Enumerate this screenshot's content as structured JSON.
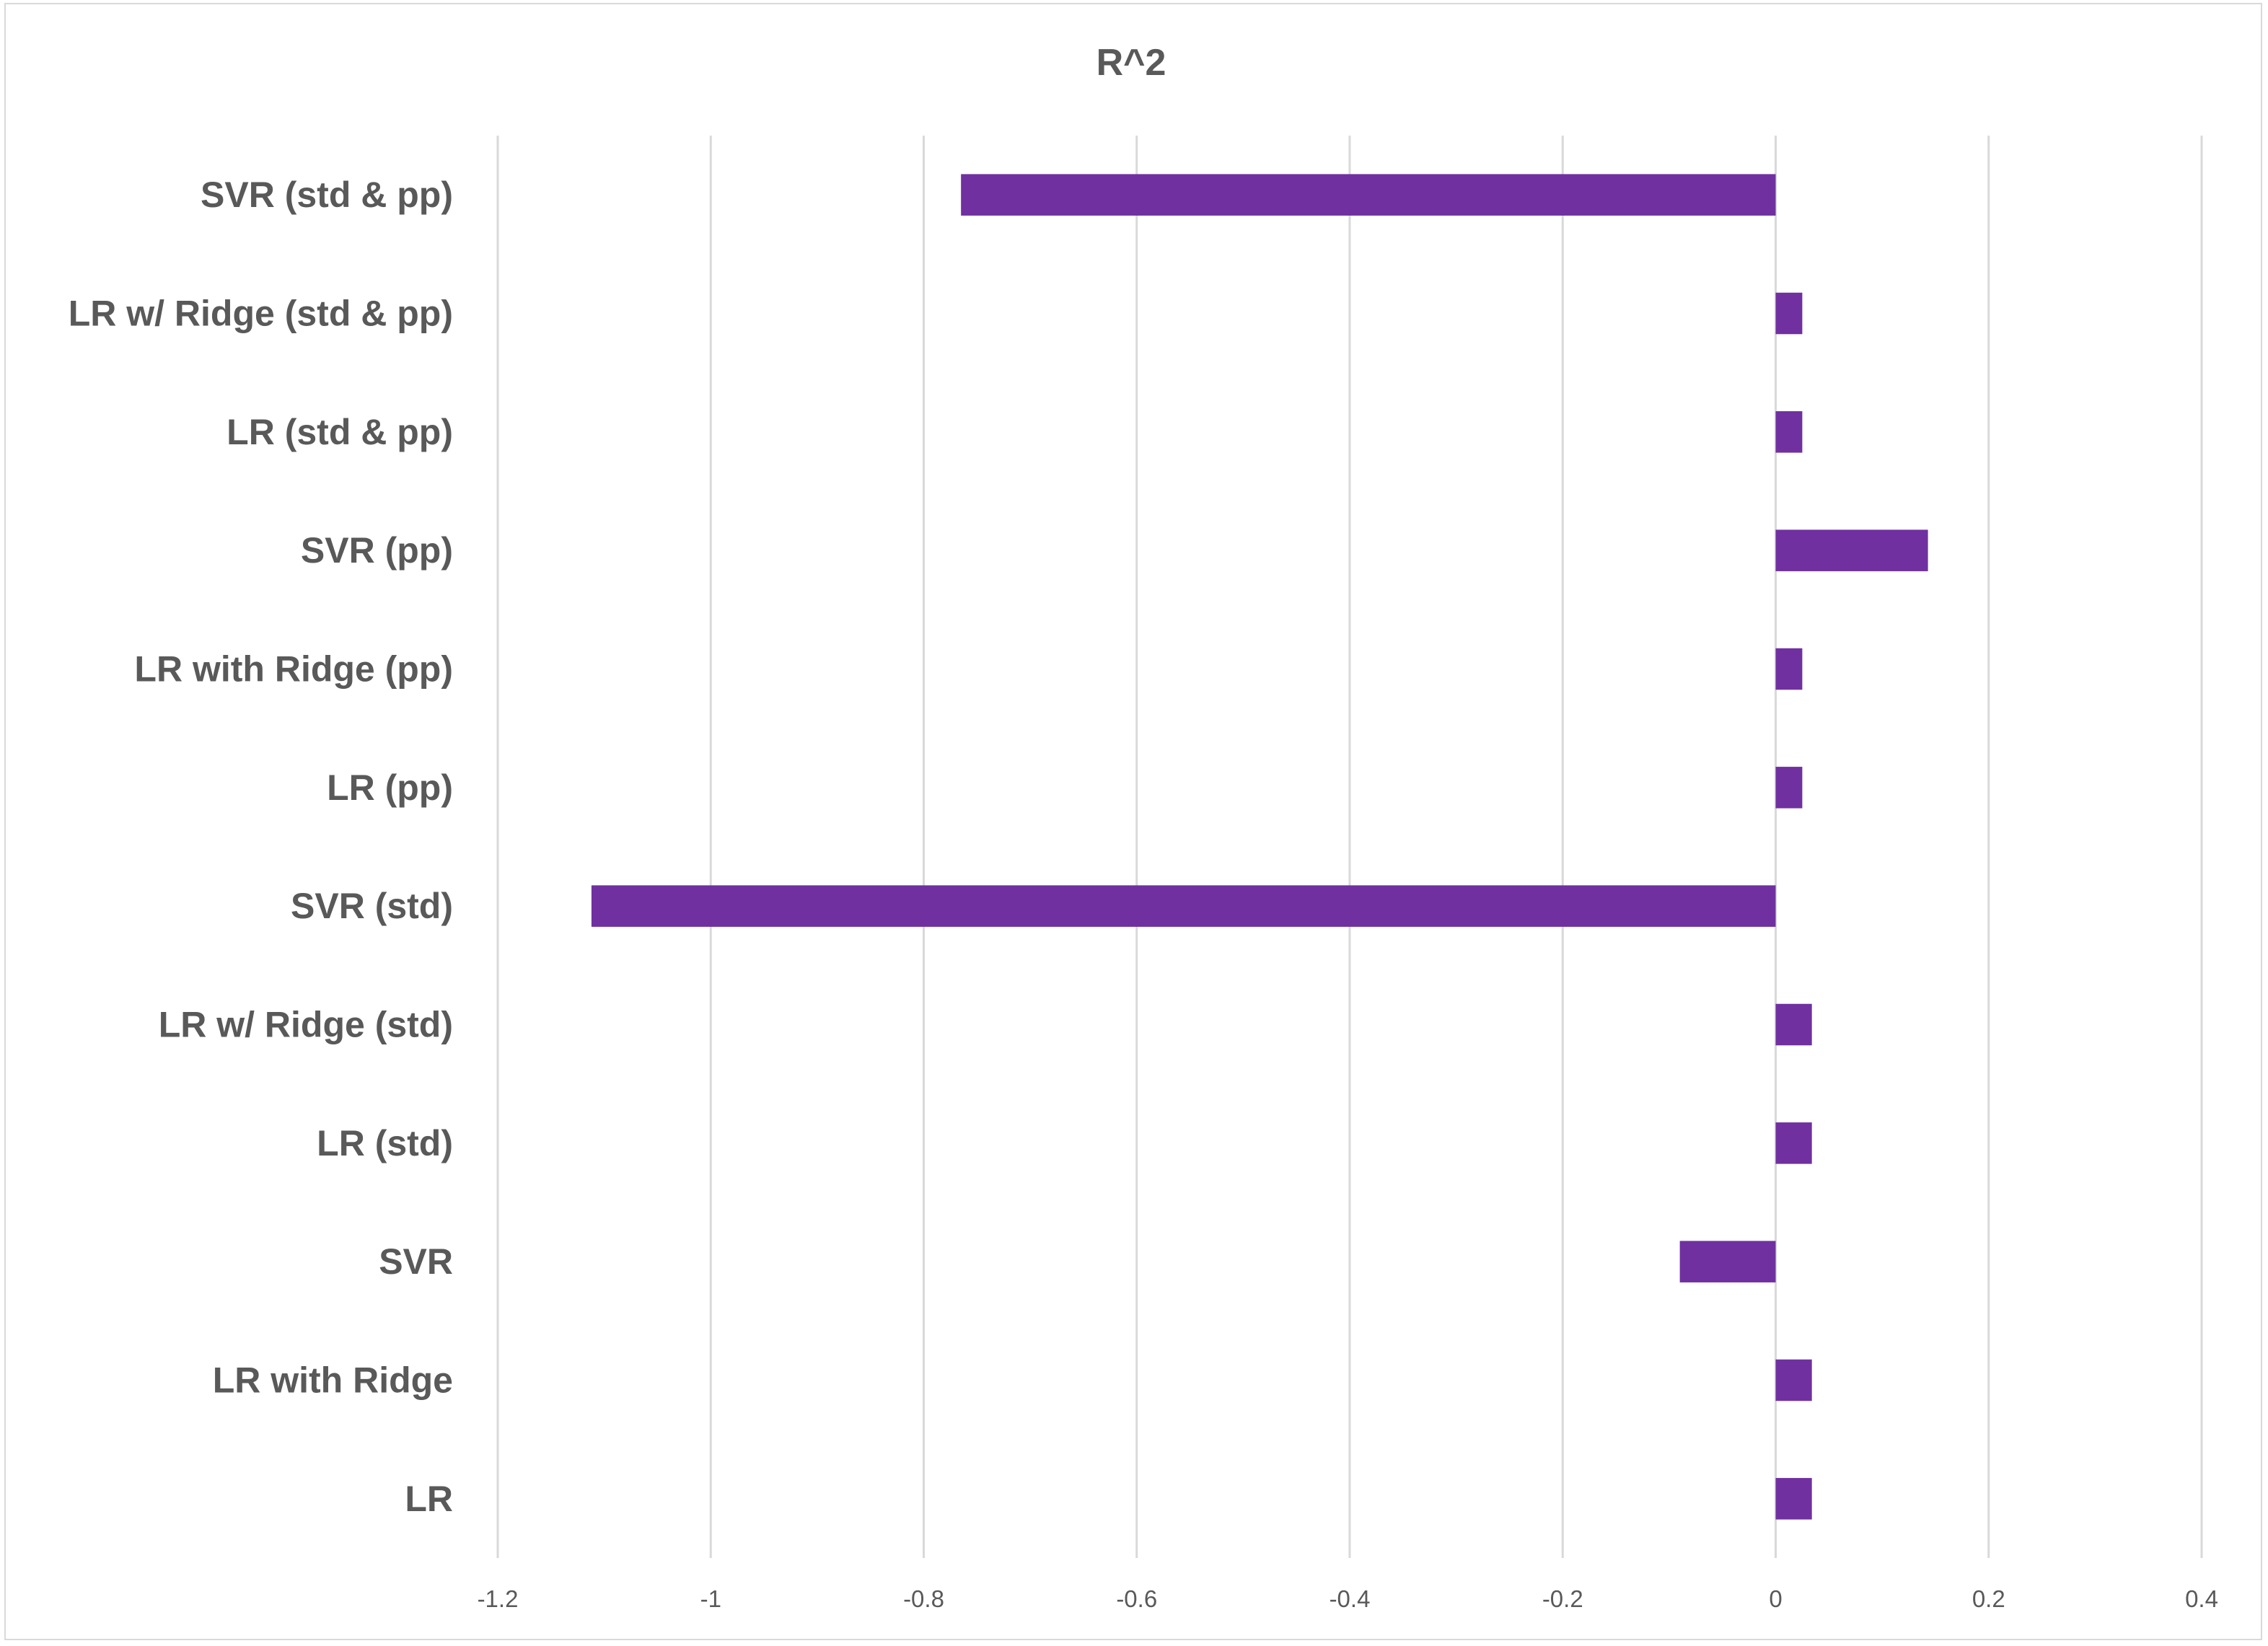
{
  "chart_data": {
    "type": "bar",
    "orientation": "horizontal",
    "title": "R^2",
    "xlabel": "",
    "ylabel": "",
    "categories": [
      "SVR (std & pp)",
      "LR w/ Ridge (std & pp)",
      "LR (std & pp)",
      "SVR (pp)",
      "LR with Ridge  (pp)",
      "LR (pp)",
      "SVR (std)",
      "LR w/ Ridge (std)",
      "LR (std)",
      "SVR",
      "LR with Ridge",
      "LR"
    ],
    "values": [
      -0.765,
      0.025,
      0.025,
      0.143,
      0.025,
      0.025,
      -1.112,
      0.034,
      0.034,
      -0.09,
      0.034,
      0.034
    ],
    "xlim": [
      -1.2,
      0.4
    ],
    "xticks": [
      -1.2,
      -1,
      -0.8,
      -0.6,
      -0.4,
      -0.2,
      0,
      0.2,
      0.4
    ],
    "xtick_labels": [
      "-1.2",
      "-1",
      "-0.8",
      "-0.6",
      "-0.4",
      "-0.2",
      "0",
      "0.2",
      "0.4"
    ],
    "grid": "vertical",
    "legend": "none",
    "bar_color": "#7030a0"
  }
}
